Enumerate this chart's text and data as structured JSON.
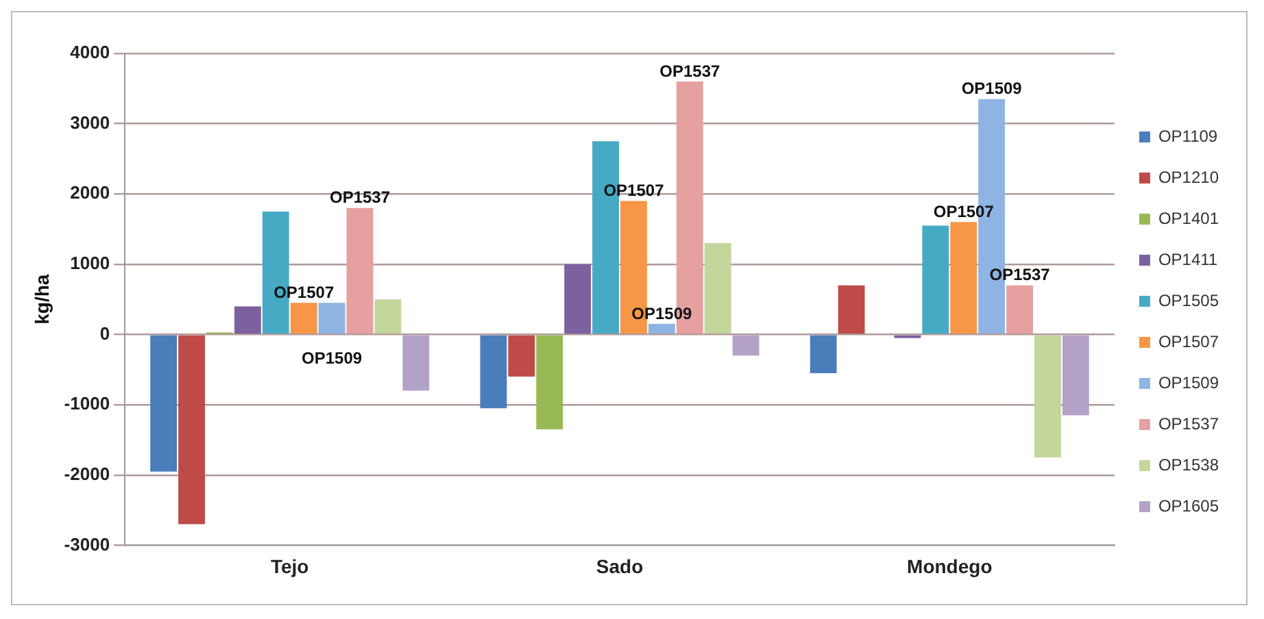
{
  "chart_data": {
    "type": "bar",
    "ylabel": "kg/ha",
    "categories": [
      "Tejo",
      "Sado",
      "Mondego"
    ],
    "series": [
      {
        "name": "OP1109",
        "color": "#4a7ebb",
        "values": [
          -1950,
          -1050,
          -550
        ]
      },
      {
        "name": "OP1210",
        "color": "#be4b48",
        "values": [
          -2700,
          -600,
          700
        ]
      },
      {
        "name": "OP1401",
        "color": "#98b954",
        "values": [
          30,
          -1350,
          0
        ]
      },
      {
        "name": "OP1411",
        "color": "#7d60a0",
        "values": [
          400,
          1000,
          -50
        ]
      },
      {
        "name": "OP1505",
        "color": "#46aac5",
        "values": [
          1750,
          2750,
          1550
        ]
      },
      {
        "name": "OP1507",
        "color": "#f79646",
        "values": [
          450,
          1900,
          1600
        ]
      },
      {
        "name": "OP1509",
        "color": "#8eb4e3",
        "values": [
          450,
          150,
          3350
        ]
      },
      {
        "name": "OP1537",
        "color": "#e6a0a0",
        "values": [
          1800,
          3600,
          700
        ]
      },
      {
        "name": "OP1538",
        "color": "#c3d69b",
        "values": [
          500,
          1300,
          -1750
        ]
      },
      {
        "name": "OP1605",
        "color": "#b3a2c7",
        "values": [
          -800,
          -300,
          -1150
        ]
      }
    ],
    "ylim": [
      -3000,
      4000
    ],
    "yticks": [
      -3000,
      -2000,
      -1000,
      0,
      1000,
      2000,
      3000,
      4000
    ],
    "grid": "y",
    "legend": "right",
    "annotations": [
      {
        "text": "OP1537",
        "x": "Tejo",
        "y": 1800
      },
      {
        "text": "OP1507",
        "x": "Tejo",
        "y": 450
      },
      {
        "text": "OP1509",
        "x": "Tejo",
        "y": 450
      },
      "OP1537",
      {
        "text": "OP1507",
        "x": "Sado",
        "y": 1900
      },
      {
        "text": "OP1509",
        "x": "Sado",
        "y": 150
      },
      "OP1509",
      {
        "text": "OP1507",
        "x": "Mondego",
        "y": 1600
      },
      {
        "text": "OP1537",
        "x": "Mondego",
        "y": 700
      }
    ]
  }
}
